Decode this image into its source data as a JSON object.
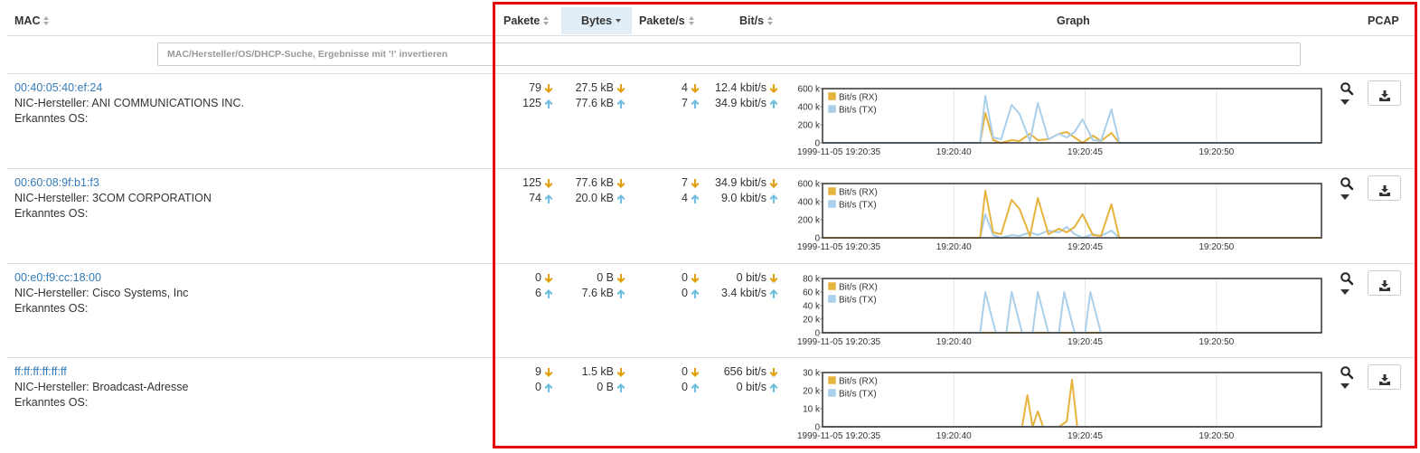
{
  "table": {
    "headers": {
      "mac": "MAC",
      "packets": "Pakete",
      "bytes": "Bytes",
      "pps": "Pakete/s",
      "bps": "Bit/s",
      "graph": "Graph",
      "pcap": "PCAP"
    },
    "search_placeholder": "MAC/Hersteller/OS/DHCP-Suche, Ergebnisse mit '!' invertieren"
  },
  "colors": {
    "rx": "#e6b33c",
    "tx": "#a9cfea",
    "link": "#337ab7",
    "rx_arrow": "#e0a010",
    "tx_arrow": "#6fbde0",
    "highlight_border": "#e8000b"
  },
  "icons": {
    "down": "arrow-down-icon",
    "up": "arrow-up-icon",
    "search": "search-icon",
    "caret": "caret-down-icon",
    "download": "download-icon"
  },
  "rows": [
    {
      "mac": "00:40:05:40:ef:24",
      "vendor": "NIC-Hersteller: ANI COMMUNICATIONS INC.",
      "os": "Erkanntes OS:",
      "packets": [
        "79",
        "125"
      ],
      "bytes": [
        "27.5 kB",
        "77.6 kB"
      ],
      "pps": [
        "4",
        "7"
      ],
      "bps": [
        "12.4 kbit/s",
        "34.9 kbit/s"
      ]
    },
    {
      "mac": "00:60:08:9f:b1:f3",
      "vendor": "NIC-Hersteller: 3COM CORPORATION",
      "os": "Erkanntes OS:",
      "packets": [
        "125",
        "74"
      ],
      "bytes": [
        "77.6 kB",
        "20.0 kB"
      ],
      "pps": [
        "7",
        "4"
      ],
      "bps": [
        "34.9 kbit/s",
        "9.0 kbit/s"
      ]
    },
    {
      "mac": "00:e0:f9:cc:18:00",
      "vendor": "NIC-Hersteller: Cisco Systems, Inc",
      "os": "Erkanntes OS:",
      "packets": [
        "0",
        "6"
      ],
      "bytes": [
        "0 B",
        "7.6 kB"
      ],
      "pps": [
        "0",
        "0"
      ],
      "bps": [
        "0 bit/s",
        "3.4 kbit/s"
      ]
    },
    {
      "mac": "ff:ff:ff:ff:ff:ff",
      "vendor": "NIC-Hersteller: Broadcast-Adresse",
      "os": "Erkanntes OS:",
      "packets": [
        "9",
        "0"
      ],
      "bytes": [
        "1.5 kB",
        "0 B"
      ],
      "pps": [
        "0",
        "0"
      ],
      "bps": [
        "656 bit/s",
        "0 bit/s"
      ]
    }
  ],
  "chart_data": [
    {
      "type": "line",
      "legend": [
        "Bit/s (RX)",
        "Bit/s (TX)"
      ],
      "legend_position": "top-left",
      "x_ticks": [
        "1999-11-05 19:20:35",
        "19:20:40",
        "19:20:45",
        "19:20:50"
      ],
      "y_ticks": [
        "0",
        "200 k",
        "400 k",
        "600 k"
      ],
      "ylim": [
        0,
        600000
      ],
      "x_range": [
        35,
        54
      ],
      "series": [
        {
          "name": "Bit/s (RX)",
          "points": [
            [
              35,
              0
            ],
            [
              41,
              0
            ],
            [
              41.2,
              330000
            ],
            [
              41.5,
              30000
            ],
            [
              41.8,
              0
            ],
            [
              42.2,
              30000
            ],
            [
              42.5,
              20000
            ],
            [
              42.9,
              100000
            ],
            [
              43.2,
              30000
            ],
            [
              43.6,
              40000
            ],
            [
              44.0,
              100000
            ],
            [
              44.3,
              120000
            ],
            [
              44.6,
              60000
            ],
            [
              44.9,
              0
            ],
            [
              45.3,
              80000
            ],
            [
              45.6,
              20000
            ],
            [
              46.0,
              110000
            ],
            [
              46.3,
              0
            ],
            [
              54,
              0
            ]
          ]
        },
        {
          "name": "Bit/s (TX)",
          "points": [
            [
              35,
              0
            ],
            [
              41,
              0
            ],
            [
              41.2,
              520000
            ],
            [
              41.5,
              60000
            ],
            [
              41.8,
              40000
            ],
            [
              42.2,
              420000
            ],
            [
              42.5,
              320000
            ],
            [
              42.9,
              20000
            ],
            [
              43.2,
              440000
            ],
            [
              43.6,
              40000
            ],
            [
              44.0,
              100000
            ],
            [
              44.3,
              60000
            ],
            [
              44.6,
              120000
            ],
            [
              44.9,
              260000
            ],
            [
              45.3,
              30000
            ],
            [
              45.6,
              20000
            ],
            [
              46.0,
              370000
            ],
            [
              46.3,
              0
            ],
            [
              54,
              0
            ]
          ]
        }
      ]
    },
    {
      "type": "line",
      "legend": [
        "Bit/s (RX)",
        "Bit/s (TX)"
      ],
      "legend_position": "top-left",
      "x_ticks": [
        "1999-11-05 19:20:35",
        "19:20:40",
        "19:20:45",
        "19:20:50"
      ],
      "y_ticks": [
        "0",
        "200 k",
        "400 k",
        "600 k"
      ],
      "ylim": [
        0,
        600000
      ],
      "x_range": [
        35,
        54
      ],
      "series": [
        {
          "name": "Bit/s (RX)",
          "points": [
            [
              35,
              0
            ],
            [
              41,
              0
            ],
            [
              41.2,
              520000
            ],
            [
              41.5,
              60000
            ],
            [
              41.8,
              40000
            ],
            [
              42.2,
              420000
            ],
            [
              42.5,
              320000
            ],
            [
              42.9,
              20000
            ],
            [
              43.2,
              440000
            ],
            [
              43.6,
              40000
            ],
            [
              44.0,
              100000
            ],
            [
              44.3,
              60000
            ],
            [
              44.6,
              120000
            ],
            [
              44.9,
              260000
            ],
            [
              45.3,
              30000
            ],
            [
              45.6,
              20000
            ],
            [
              46.0,
              370000
            ],
            [
              46.3,
              0
            ],
            [
              54,
              0
            ]
          ]
        },
        {
          "name": "Bit/s (TX)",
          "points": [
            [
              35,
              0
            ],
            [
              41,
              0
            ],
            [
              41.2,
              260000
            ],
            [
              41.5,
              30000
            ],
            [
              41.8,
              0
            ],
            [
              42.2,
              30000
            ],
            [
              42.5,
              20000
            ],
            [
              42.9,
              60000
            ],
            [
              43.2,
              30000
            ],
            [
              43.6,
              80000
            ],
            [
              44.0,
              60000
            ],
            [
              44.3,
              120000
            ],
            [
              44.6,
              40000
            ],
            [
              44.9,
              0
            ],
            [
              45.3,
              40000
            ],
            [
              45.6,
              20000
            ],
            [
              46.0,
              80000
            ],
            [
              46.3,
              0
            ],
            [
              54,
              0
            ]
          ]
        }
      ]
    },
    {
      "type": "line",
      "legend": [
        "Bit/s (RX)",
        "Bit/s (TX)"
      ],
      "legend_position": "top-left",
      "x_ticks": [
        "1999-11-05 19:20:35",
        "19:20:40",
        "19:20:45",
        "19:20:50"
      ],
      "y_ticks": [
        "0",
        "20 k",
        "40 k",
        "60 k",
        "80 k"
      ],
      "ylim": [
        0,
        80000
      ],
      "x_range": [
        35,
        54
      ],
      "series": [
        {
          "name": "Bit/s (RX)",
          "points": [
            [
              35,
              0
            ],
            [
              54,
              0
            ]
          ]
        },
        {
          "name": "Bit/s (TX)",
          "points": [
            [
              35,
              0
            ],
            [
              41,
              0
            ],
            [
              41.2,
              60000
            ],
            [
              41.6,
              0
            ],
            [
              42.0,
              0
            ],
            [
              42.2,
              60000
            ],
            [
              42.6,
              0
            ],
            [
              43.0,
              0
            ],
            [
              43.2,
              60000
            ],
            [
              43.6,
              0
            ],
            [
              44.0,
              0
            ],
            [
              44.2,
              60000
            ],
            [
              44.6,
              0
            ],
            [
              45.0,
              0
            ],
            [
              45.2,
              60000
            ],
            [
              45.6,
              0
            ],
            [
              54,
              0
            ]
          ]
        }
      ]
    },
    {
      "type": "line",
      "legend": [
        "Bit/s (RX)",
        "Bit/s (TX)"
      ],
      "legend_position": "top-left",
      "x_ticks": [
        "1999-11-05 19:20:35",
        "19:20:40",
        "19:20:45",
        "19:20:50"
      ],
      "y_ticks": [
        "0",
        "10 k",
        "20 k",
        "30 k"
      ],
      "ylim": [
        0,
        30000
      ],
      "x_range": [
        35,
        54
      ],
      "series": [
        {
          "name": "Bit/s (RX)",
          "points": [
            [
              35,
              0
            ],
            [
              42.6,
              0
            ],
            [
              42.8,
              17500
            ],
            [
              43.0,
              0
            ],
            [
              43.2,
              8500
            ],
            [
              43.4,
              0
            ],
            [
              44.0,
              0
            ],
            [
              44.3,
              3000
            ],
            [
              44.5,
              26000
            ],
            [
              44.7,
              0
            ],
            [
              54,
              0
            ]
          ]
        },
        {
          "name": "Bit/s (TX)",
          "points": [
            [
              35,
              0
            ],
            [
              54,
              0
            ]
          ]
        }
      ]
    }
  ]
}
